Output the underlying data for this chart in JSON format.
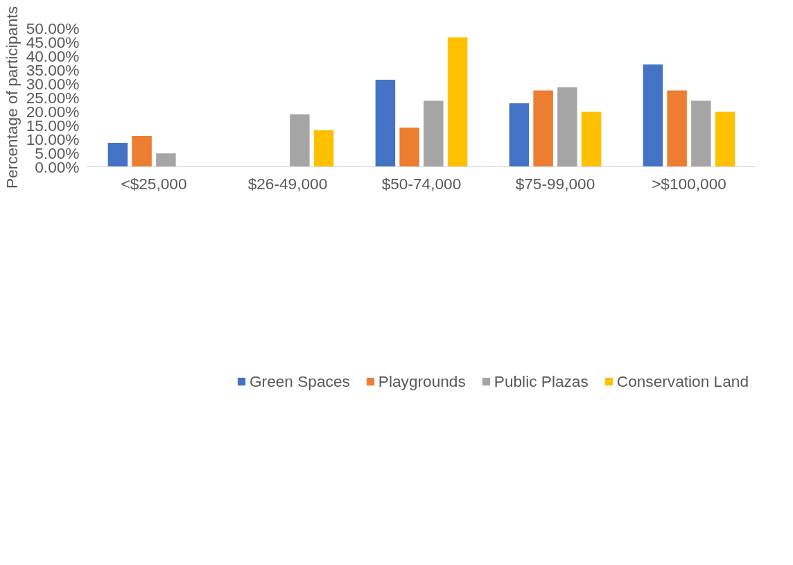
{
  "chart_data": {
    "type": "bar",
    "ylabel": "Percentage of participants",
    "categories": [
      "<$25,000",
      "$26-49,000",
      "$50-74,000",
      "$75-99,000",
      ">$100,000"
    ],
    "series": [
      {
        "name": "Green Spaces",
        "color": "#4472c4",
        "values": [
          8.6,
          0,
          31.4,
          22.9,
          36.9
        ]
      },
      {
        "name": "Playgrounds",
        "color": "#ed7d31",
        "values": [
          11.1,
          0,
          14.1,
          27.5,
          27.5
        ]
      },
      {
        "name": "Public Plazas",
        "color": "#a5a5a5",
        "values": [
          4.8,
          18.9,
          23.8,
          28.6,
          23.8
        ]
      },
      {
        "name": "Conservation Land",
        "color": "#ffc000",
        "values": [
          0,
          13.2,
          46.6,
          19.8,
          19.8
        ]
      }
    ],
    "ylim": [
      0,
      50
    ],
    "yticks": [
      {
        "value": 0,
        "label": "0.00%"
      },
      {
        "value": 5,
        "label": "5.00%"
      },
      {
        "value": 10,
        "label": "10.00%"
      },
      {
        "value": 15,
        "label": "15.00%"
      },
      {
        "value": 20,
        "label": "20.00%"
      },
      {
        "value": 25,
        "label": "25.00%"
      },
      {
        "value": 30,
        "label": "30.00%"
      },
      {
        "value": 35,
        "label": "35.00%"
      },
      {
        "value": 40,
        "label": "40.00%"
      },
      {
        "value": 45,
        "label": "45.00%"
      },
      {
        "value": 50,
        "label": "50.00%"
      }
    ],
    "grid": false,
    "legend": "bottom"
  }
}
